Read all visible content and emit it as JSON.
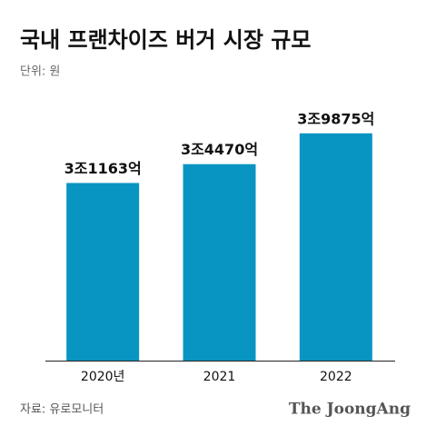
{
  "chart_data": {
    "type": "bar",
    "title": "국내 프랜차이즈 버거 시장 규모",
    "subtitle": "단위: 원",
    "categories": [
      "2020년",
      "2021",
      "2022"
    ],
    "values": [
      31163,
      34470,
      39875
    ],
    "value_labels": [
      "3조1163억",
      "3조4470억",
      "3조9875억"
    ],
    "color": "#0995c2",
    "ylim": [
      0,
      40000
    ],
    "source": "자료: 유로모니터",
    "publisher": "The JoongAng"
  }
}
